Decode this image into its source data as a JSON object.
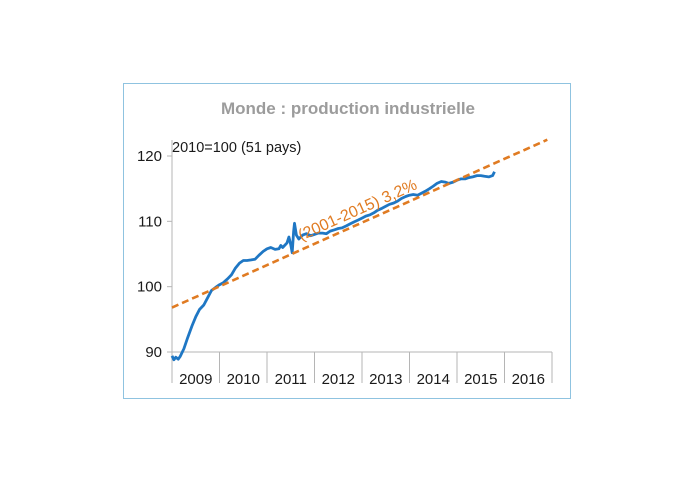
{
  "chart_data": {
    "type": "line",
    "title": "Monde : production industrielle",
    "note": "2010=100 (51 pays)",
    "ylim": [
      90,
      120
    ],
    "yticks": [
      90,
      100,
      110,
      120
    ],
    "x_categories": [
      "2009",
      "2010",
      "2011",
      "2012",
      "2013",
      "2014",
      "2015",
      "2016"
    ],
    "series": [
      {
        "kind": "actual",
        "color": "#1f77c4",
        "points": [
          [
            2009.0,
            89.4
          ],
          [
            2009.04,
            88.8
          ],
          [
            2009.08,
            89.2
          ],
          [
            2009.13,
            88.9
          ],
          [
            2009.17,
            89.3
          ],
          [
            2009.25,
            90.5
          ],
          [
            2009.33,
            92.2
          ],
          [
            2009.42,
            94.0
          ],
          [
            2009.5,
            95.4
          ],
          [
            2009.58,
            96.5
          ],
          [
            2009.67,
            97.2
          ],
          [
            2009.75,
            98.3
          ],
          [
            2009.83,
            99.4
          ],
          [
            2009.92,
            99.9
          ],
          [
            2010.0,
            100.3
          ],
          [
            2010.08,
            100.6
          ],
          [
            2010.17,
            101.2
          ],
          [
            2010.25,
            101.8
          ],
          [
            2010.33,
            102.8
          ],
          [
            2010.42,
            103.6
          ],
          [
            2010.5,
            104.0
          ],
          [
            2010.58,
            104.0
          ],
          [
            2010.67,
            104.1
          ],
          [
            2010.75,
            104.2
          ],
          [
            2010.83,
            104.8
          ],
          [
            2010.92,
            105.4
          ],
          [
            2011.0,
            105.8
          ],
          [
            2011.08,
            106.0
          ],
          [
            2011.17,
            105.7
          ],
          [
            2011.25,
            105.8
          ],
          [
            2011.29,
            106.3
          ],
          [
            2011.33,
            106.0
          ],
          [
            2011.42,
            106.7
          ],
          [
            2011.46,
            107.6
          ],
          [
            2011.5,
            106.4
          ],
          [
            2011.53,
            105.2
          ],
          [
            2011.56,
            108.4
          ],
          [
            2011.58,
            109.7
          ],
          [
            2011.62,
            107.9
          ],
          [
            2011.67,
            107.3
          ],
          [
            2011.75,
            107.9
          ],
          [
            2011.83,
            108.1
          ],
          [
            2011.92,
            107.8
          ],
          [
            2012.0,
            108.0
          ],
          [
            2012.08,
            108.2
          ],
          [
            2012.17,
            108.2
          ],
          [
            2012.25,
            108.1
          ],
          [
            2012.33,
            108.5
          ],
          [
            2012.42,
            108.7
          ],
          [
            2012.5,
            108.9
          ],
          [
            2012.58,
            109.0
          ],
          [
            2012.67,
            109.3
          ],
          [
            2012.75,
            109.6
          ],
          [
            2012.83,
            109.9
          ],
          [
            2012.92,
            110.2
          ],
          [
            2013.0,
            110.5
          ],
          [
            2013.08,
            110.8
          ],
          [
            2013.17,
            111.0
          ],
          [
            2013.25,
            111.3
          ],
          [
            2013.33,
            111.7
          ],
          [
            2013.42,
            112.0
          ],
          [
            2013.5,
            112.3
          ],
          [
            2013.58,
            112.6
          ],
          [
            2013.67,
            112.8
          ],
          [
            2013.75,
            113.1
          ],
          [
            2013.83,
            113.5
          ],
          [
            2013.92,
            113.8
          ],
          [
            2014.0,
            114.0
          ],
          [
            2014.08,
            114.1
          ],
          [
            2014.17,
            114.0
          ],
          [
            2014.25,
            114.3
          ],
          [
            2014.33,
            114.6
          ],
          [
            2014.42,
            115.0
          ],
          [
            2014.5,
            115.4
          ],
          [
            2014.58,
            115.8
          ],
          [
            2014.67,
            116.1
          ],
          [
            2014.75,
            116.0
          ],
          [
            2014.83,
            115.8
          ],
          [
            2014.92,
            116.0
          ],
          [
            2015.0,
            116.3
          ],
          [
            2015.08,
            116.5
          ],
          [
            2015.17,
            116.5
          ],
          [
            2015.25,
            116.7
          ],
          [
            2015.33,
            116.8
          ],
          [
            2015.42,
            117.0
          ],
          [
            2015.5,
            117.0
          ],
          [
            2015.58,
            116.9
          ],
          [
            2015.67,
            116.8
          ],
          [
            2015.75,
            117.0
          ],
          [
            2015.79,
            117.6
          ]
        ]
      },
      {
        "kind": "trend",
        "name": "(2001-2015) 3,2%",
        "color": "#e07b22",
        "points": [
          [
            2009.0,
            96.8
          ],
          [
            2016.9,
            122.5
          ]
        ]
      }
    ]
  }
}
